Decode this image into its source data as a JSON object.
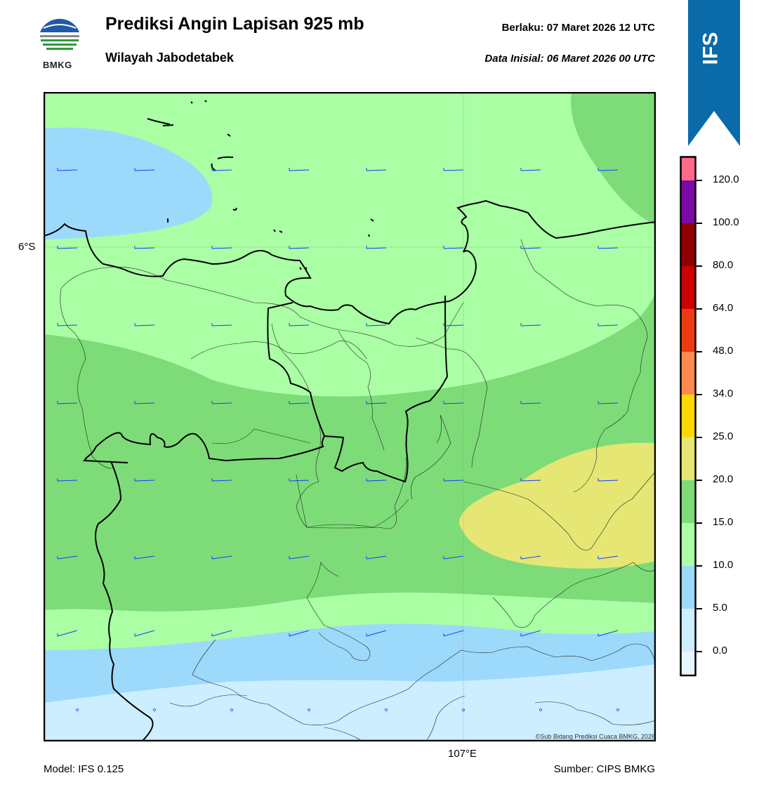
{
  "header": {
    "title": "Prediksi Angin Lapisan 925 mb",
    "subtitle": "Wilayah Jabodetabek",
    "valid_label": "Berlaku:  07 Maret 2026 12 UTC",
    "init_label": "Data Inisial:  06 Maret 2026 00 UTC",
    "logo_text": "BMKG",
    "badge_text": "IFS"
  },
  "map": {
    "lat_label": "6°S",
    "lon_label": "107°E",
    "credit": "©Sub Bidang Prediksi Cuaca BMKG, 2026",
    "land_color": "#000000",
    "barb_color": "#1a3cff"
  },
  "colorbar": {
    "labels": [
      "0.0",
      "5.0",
      "10.0",
      "15.0",
      "20.0",
      "25.0",
      "34.0",
      "48.0",
      "64.0",
      "80.0",
      "100.0",
      "120.0"
    ],
    "colors": [
      "#e8f6ff",
      "#cceeff",
      "#9dd9fb",
      "#aaffa5",
      "#7ddc78",
      "#e6e674",
      "#ffd700",
      "#ff8a50",
      "#ee3a10",
      "#cc0000",
      "#900000",
      "#7a0aa8",
      "#ff6a8a"
    ]
  },
  "footer": {
    "model": "Model: IFS 0.125",
    "source": "Sumber: CIPS BMKG"
  }
}
